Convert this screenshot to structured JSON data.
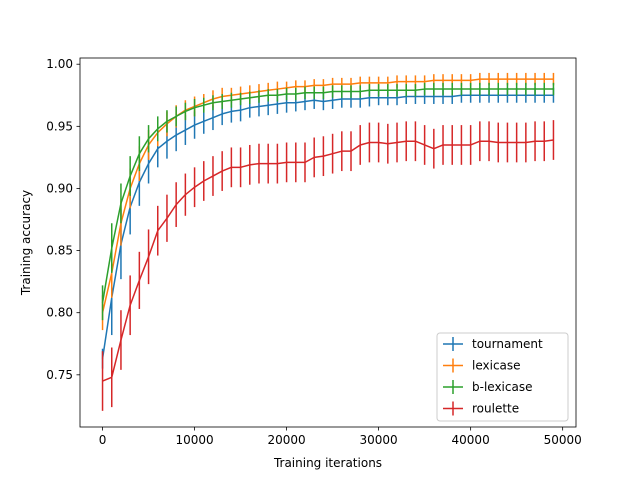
{
  "chart_data": {
    "type": "line",
    "title": "",
    "xlabel": "Training iterations",
    "ylabel": "Training accuracy",
    "xlim": [
      -2450,
      51450
    ],
    "ylim": [
      0.708,
      1.005
    ],
    "xticks": [
      0,
      10000,
      20000,
      30000,
      40000,
      50000
    ],
    "xtick_labels": [
      "0",
      "10000",
      "20000",
      "30000",
      "40000",
      "50000"
    ],
    "yticks": [
      0.75,
      0.8,
      0.85,
      0.9,
      0.95,
      1.0
    ],
    "ytick_labels": [
      "0.75",
      "0.80",
      "0.85",
      "0.90",
      "0.95",
      "1.00"
    ],
    "grid": false,
    "legend_position": "bottom-right",
    "x": [
      0,
      1000,
      2000,
      3000,
      4000,
      5000,
      6000,
      7000,
      8000,
      9000,
      10000,
      11000,
      12000,
      13000,
      14000,
      15000,
      16000,
      17000,
      18000,
      19000,
      20000,
      21000,
      22000,
      23000,
      24000,
      25000,
      26000,
      27000,
      28000,
      29000,
      30000,
      31000,
      32000,
      33000,
      34000,
      35000,
      36000,
      37000,
      38000,
      39000,
      40000,
      41000,
      42000,
      43000,
      44000,
      45000,
      46000,
      47000,
      48000,
      49000
    ],
    "series": [
      {
        "name": "tournament",
        "color": "#1f77b4",
        "values": [
          0.763,
          0.812,
          0.855,
          0.885,
          0.905,
          0.92,
          0.932,
          0.938,
          0.943,
          0.947,
          0.951,
          0.954,
          0.957,
          0.96,
          0.962,
          0.963,
          0.965,
          0.966,
          0.967,
          0.968,
          0.969,
          0.969,
          0.97,
          0.971,
          0.97,
          0.971,
          0.972,
          0.972,
          0.972,
          0.973,
          0.973,
          0.973,
          0.973,
          0.974,
          0.974,
          0.974,
          0.974,
          0.974,
          0.974,
          0.975,
          0.975,
          0.975,
          0.975,
          0.975,
          0.975,
          0.975,
          0.975,
          0.975,
          0.975,
          0.975
        ],
        "errors": [
          0.008,
          0.03,
          0.028,
          0.022,
          0.019,
          0.016,
          0.015,
          0.014,
          0.013,
          0.012,
          0.011,
          0.01,
          0.01,
          0.009,
          0.009,
          0.009,
          0.008,
          0.008,
          0.008,
          0.008,
          0.008,
          0.007,
          0.007,
          0.007,
          0.007,
          0.007,
          0.007,
          0.007,
          0.007,
          0.007,
          0.006,
          0.006,
          0.006,
          0.006,
          0.006,
          0.006,
          0.006,
          0.006,
          0.006,
          0.006,
          0.006,
          0.006,
          0.006,
          0.006,
          0.006,
          0.006,
          0.006,
          0.006,
          0.006,
          0.006
        ]
      },
      {
        "name": "lexicase",
        "color": "#ff7f0e",
        "values": [
          0.8,
          0.832,
          0.872,
          0.9,
          0.92,
          0.935,
          0.945,
          0.952,
          0.958,
          0.963,
          0.966,
          0.969,
          0.972,
          0.974,
          0.975,
          0.976,
          0.977,
          0.978,
          0.979,
          0.98,
          0.981,
          0.982,
          0.982,
          0.983,
          0.983,
          0.984,
          0.984,
          0.984,
          0.985,
          0.985,
          0.985,
          0.985,
          0.986,
          0.986,
          0.986,
          0.986,
          0.987,
          0.987,
          0.987,
          0.987,
          0.987,
          0.988,
          0.988,
          0.988,
          0.988,
          0.988,
          0.988,
          0.988,
          0.988,
          0.988
        ],
        "errors": [
          0.014,
          0.02,
          0.018,
          0.016,
          0.014,
          0.012,
          0.011,
          0.01,
          0.009,
          0.008,
          0.008,
          0.007,
          0.007,
          0.007,
          0.006,
          0.006,
          0.006,
          0.006,
          0.006,
          0.006,
          0.005,
          0.005,
          0.005,
          0.005,
          0.005,
          0.005,
          0.005,
          0.005,
          0.005,
          0.005,
          0.005,
          0.005,
          0.005,
          0.005,
          0.005,
          0.005,
          0.005,
          0.005,
          0.005,
          0.005,
          0.005,
          0.005,
          0.005,
          0.005,
          0.005,
          0.005,
          0.005,
          0.005,
          0.005,
          0.005
        ]
      },
      {
        "name": "b-lexicase",
        "color": "#2ca02c",
        "values": [
          0.808,
          0.852,
          0.888,
          0.91,
          0.928,
          0.94,
          0.948,
          0.954,
          0.958,
          0.962,
          0.965,
          0.967,
          0.969,
          0.97,
          0.971,
          0.972,
          0.973,
          0.974,
          0.975,
          0.975,
          0.976,
          0.976,
          0.977,
          0.977,
          0.977,
          0.978,
          0.978,
          0.978,
          0.978,
          0.979,
          0.979,
          0.979,
          0.979,
          0.979,
          0.979,
          0.98,
          0.98,
          0.98,
          0.98,
          0.98,
          0.98,
          0.98,
          0.98,
          0.98,
          0.98,
          0.98,
          0.98,
          0.98,
          0.98,
          0.98
        ],
        "errors": [
          0.014,
          0.02,
          0.016,
          0.016,
          0.014,
          0.011,
          0.01,
          0.009,
          0.008,
          0.007,
          0.007,
          0.006,
          0.006,
          0.006,
          0.006,
          0.005,
          0.005,
          0.005,
          0.005,
          0.005,
          0.005,
          0.005,
          0.005,
          0.005,
          0.005,
          0.005,
          0.005,
          0.005,
          0.005,
          0.005,
          0.005,
          0.005,
          0.005,
          0.005,
          0.005,
          0.005,
          0.005,
          0.005,
          0.005,
          0.005,
          0.005,
          0.005,
          0.005,
          0.005,
          0.005,
          0.005,
          0.005,
          0.005,
          0.005,
          0.005
        ]
      },
      {
        "name": "roulette",
        "color": "#d62728",
        "values": [
          0.745,
          0.748,
          0.778,
          0.806,
          0.826,
          0.845,
          0.866,
          0.876,
          0.887,
          0.895,
          0.901,
          0.906,
          0.91,
          0.914,
          0.917,
          0.917,
          0.919,
          0.92,
          0.92,
          0.92,
          0.921,
          0.921,
          0.921,
          0.925,
          0.926,
          0.928,
          0.93,
          0.93,
          0.935,
          0.937,
          0.937,
          0.936,
          0.937,
          0.938,
          0.938,
          0.935,
          0.932,
          0.935,
          0.935,
          0.935,
          0.935,
          0.938,
          0.938,
          0.937,
          0.937,
          0.937,
          0.937,
          0.938,
          0.938,
          0.939
        ],
        "errors": [
          0.024,
          0.024,
          0.024,
          0.024,
          0.023,
          0.022,
          0.02,
          0.019,
          0.018,
          0.017,
          0.016,
          0.016,
          0.016,
          0.016,
          0.016,
          0.016,
          0.016,
          0.016,
          0.016,
          0.016,
          0.016,
          0.016,
          0.016,
          0.016,
          0.016,
          0.016,
          0.016,
          0.016,
          0.016,
          0.016,
          0.016,
          0.016,
          0.016,
          0.016,
          0.016,
          0.016,
          0.016,
          0.016,
          0.016,
          0.016,
          0.016,
          0.016,
          0.016,
          0.016,
          0.016,
          0.016,
          0.016,
          0.016,
          0.016,
          0.016
        ]
      }
    ]
  }
}
